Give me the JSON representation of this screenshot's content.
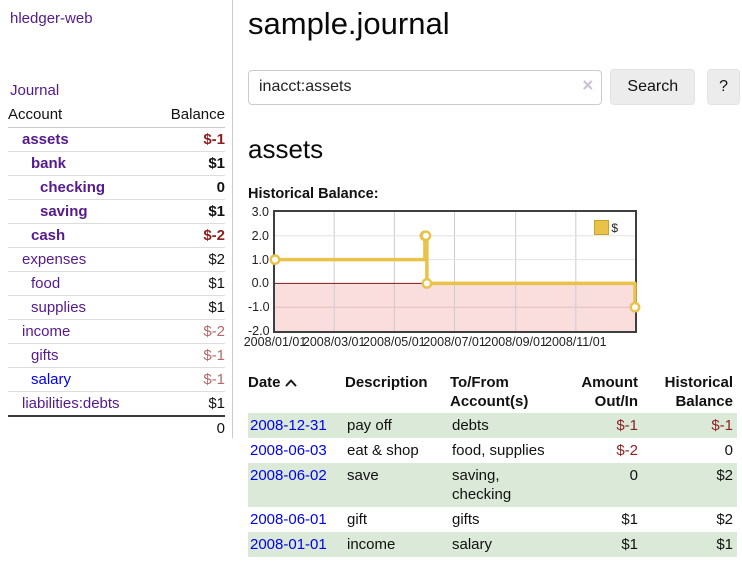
{
  "app": {
    "brand": "hledger-web",
    "nav": {
      "journal": "Journal"
    }
  },
  "sidebar": {
    "columns": {
      "account": "Account",
      "balance": "Balance"
    },
    "accounts": [
      {
        "name": "assets",
        "depth": 1,
        "bold": true,
        "link_color": "purple",
        "balance": "$-1",
        "balance_tone": "neg-strong"
      },
      {
        "name": "bank",
        "depth": 2,
        "bold": true,
        "link_color": "purple",
        "balance": "$1",
        "balance_tone": "plain"
      },
      {
        "name": "checking",
        "depth": 3,
        "bold": true,
        "link_color": "purple",
        "balance": "0",
        "balance_tone": "plain"
      },
      {
        "name": "saving",
        "depth": 3,
        "bold": true,
        "link_color": "purple",
        "balance": "$1",
        "balance_tone": "plain"
      },
      {
        "name": "cash",
        "depth": 2,
        "bold": true,
        "link_color": "purple",
        "balance": "$-2",
        "balance_tone": "neg-strong"
      },
      {
        "name": "expenses",
        "depth": 1,
        "bold": false,
        "link_color": "purple",
        "balance": "$2",
        "balance_tone": "plain"
      },
      {
        "name": "food",
        "depth": 2,
        "bold": false,
        "link_color": "purple",
        "balance": "$1",
        "balance_tone": "plain"
      },
      {
        "name": "supplies",
        "depth": 2,
        "bold": false,
        "link_color": "purple",
        "balance": "$1",
        "balance_tone": "plain"
      },
      {
        "name": "income",
        "depth": 1,
        "bold": false,
        "link_color": "purple",
        "balance": "$-2",
        "balance_tone": "neg-weak"
      },
      {
        "name": "gifts",
        "depth": 2,
        "bold": false,
        "link_color": "purple",
        "balance": "$-1",
        "balance_tone": "neg-weak"
      },
      {
        "name": "salary",
        "depth": 2,
        "bold": false,
        "link_color": "blue",
        "balance": "$-1",
        "balance_tone": "neg-weak"
      },
      {
        "name": "liabilities:debts",
        "depth": 1,
        "bold": false,
        "link_color": "purple",
        "balance": "$1",
        "balance_tone": "plain"
      }
    ],
    "total": "0"
  },
  "header": {
    "title": "sample.journal"
  },
  "search": {
    "value": "inacct:assets",
    "clear_icon": "×",
    "button_label": "Search",
    "help_label": "?"
  },
  "account_page": {
    "heading": "assets",
    "chart_label": "Historical Balance:"
  },
  "chart_data": {
    "type": "line",
    "step": true,
    "x_range": [
      "2008-01-01",
      "2008-12-31"
    ],
    "ylim": [
      -2.0,
      3.0
    ],
    "yticks": [
      "3.0",
      "2.0",
      "1.0",
      "0.0",
      "-1.0",
      "-2.0"
    ],
    "ytick_values": [
      3,
      2,
      1,
      0,
      -1,
      -2
    ],
    "xticks": [
      "2008/01/01",
      "2008/03/01",
      "2008/05/01",
      "2008/07/01",
      "2008/09/01",
      "2008/11/01"
    ],
    "series": [
      {
        "name": "$",
        "color": "#e9c24a",
        "points": [
          [
            "2008-01-01",
            1.0
          ],
          [
            "2008-06-01",
            2.0
          ],
          [
            "2008-06-02",
            2.0
          ],
          [
            "2008-06-03",
            0.0
          ],
          [
            "2008-12-31",
            -1.0
          ]
        ]
      }
    ],
    "legend_position": "top-right",
    "grid": true,
    "negative_region_color": "#fadddd",
    "zero_line_color": "#7c1a1a"
  },
  "register": {
    "columns": {
      "date": "Date",
      "description": "Description",
      "accounts": "To/From Account(s)",
      "amount": "Amount Out/In",
      "historical": "Historical Balance"
    },
    "sort": {
      "column": "date",
      "direction": "asc"
    },
    "rows": [
      {
        "date": "2008-12-31",
        "description": "pay off",
        "accounts": "debts",
        "amount": "$-1",
        "amount_tone": "neg-strong",
        "historical": "$-1",
        "historical_tone": "neg-strong"
      },
      {
        "date": "2008-06-03",
        "description": "eat & shop",
        "accounts": "food, supplies",
        "amount": "$-2",
        "amount_tone": "neg-strong",
        "historical": "0",
        "historical_tone": "plain"
      },
      {
        "date": "2008-06-02",
        "description": "save",
        "accounts": "saving, checking",
        "amount": "0",
        "amount_tone": "plain",
        "historical": "$2",
        "historical_tone": "plain"
      },
      {
        "date": "2008-06-01",
        "description": "gift",
        "accounts": "gifts",
        "amount": "$1",
        "amount_tone": "plain",
        "historical": "$2",
        "historical_tone": "plain"
      },
      {
        "date": "2008-01-01",
        "description": "income",
        "accounts": "salary",
        "amount": "$1",
        "amount_tone": "plain",
        "historical": "$1",
        "historical_tone": "plain"
      }
    ]
  }
}
